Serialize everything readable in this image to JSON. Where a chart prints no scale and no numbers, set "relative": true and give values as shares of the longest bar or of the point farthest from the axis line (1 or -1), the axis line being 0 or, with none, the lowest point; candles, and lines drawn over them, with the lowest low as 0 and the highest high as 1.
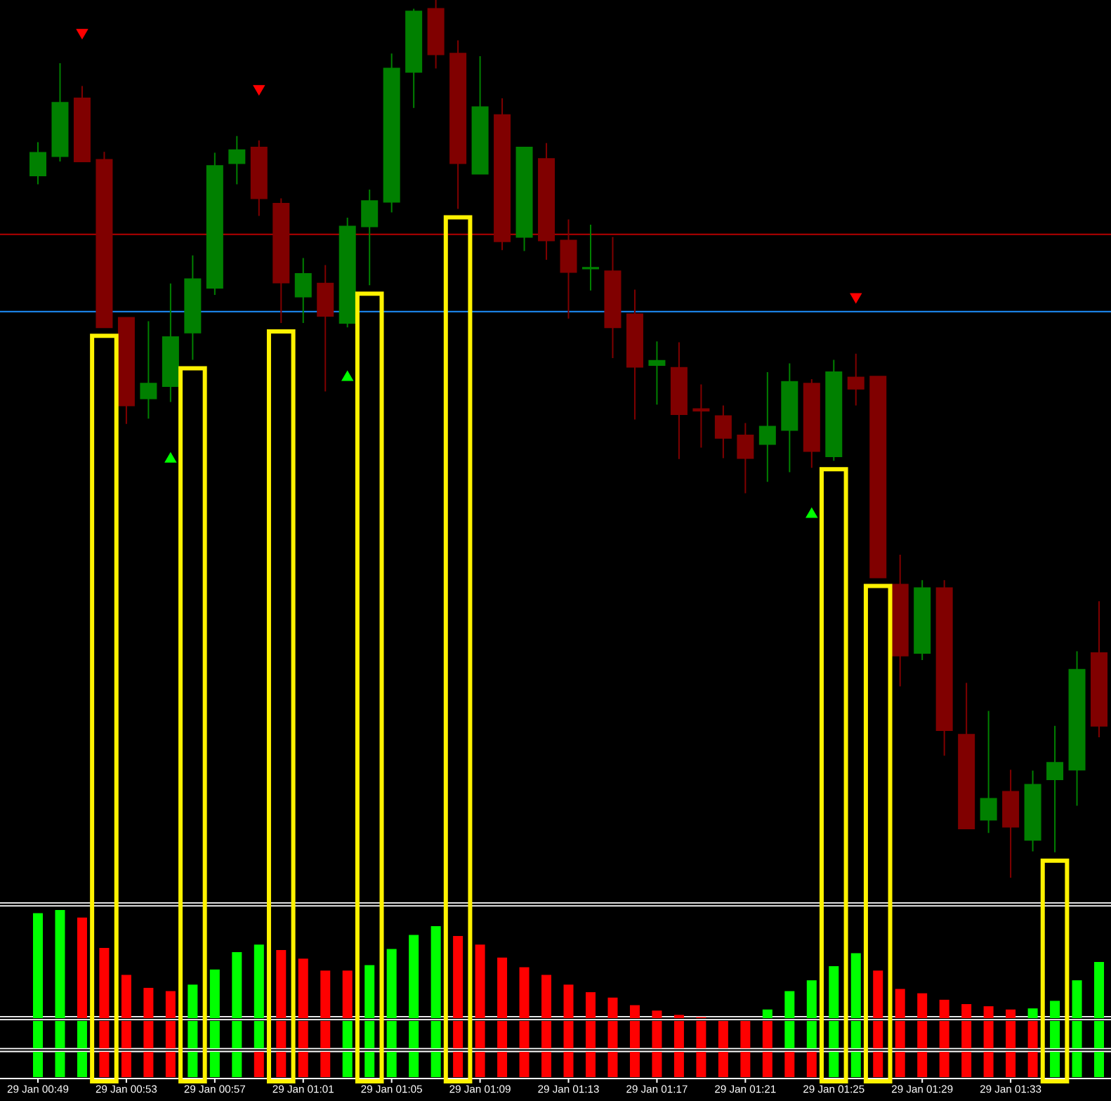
{
  "chart_data": [
    {
      "type": "candlestick",
      "relative": true,
      "categories": [
        null,
        null,
        null,
        null,
        null,
        null,
        null,
        null,
        null,
        null,
        null,
        null,
        null,
        null,
        null,
        null,
        null,
        null,
        null,
        null,
        null,
        null,
        null,
        null,
        null,
        null,
        null,
        null,
        null,
        null,
        null,
        null,
        null,
        null,
        null,
        null,
        null,
        null,
        null,
        null,
        null,
        null,
        null,
        null,
        null,
        null,
        null,
        null,
        null
      ],
      "ohlc": [
        [
          0.8,
          0.838,
          0.79,
          0.826
        ],
        [
          0.822,
          0.928,
          0.816,
          0.883
        ],
        [
          0.888,
          0.902,
          0.816,
          0.816
        ],
        [
          0.818,
          0.827,
          0.627,
          0.627
        ],
        [
          0.638,
          0.638,
          0.517,
          0.538
        ],
        [
          0.546,
          0.634,
          0.523,
          0.563
        ],
        [
          0.56,
          0.677,
          0.542,
          0.616
        ],
        [
          0.621,
          0.709,
          0.59,
          0.682
        ],
        [
          0.672,
          0.826,
          0.664,
          0.811
        ],
        [
          0.814,
          0.845,
          0.79,
          0.829
        ],
        [
          0.832,
          0.84,
          0.754,
          0.774
        ],
        [
          0.768,
          0.774,
          0.632,
          0.678
        ],
        [
          0.662,
          0.706,
          0.632,
          0.688
        ],
        [
          0.677,
          0.698,
          0.554,
          0.64
        ],
        [
          0.632,
          0.752,
          0.627,
          0.742
        ],
        [
          0.742,
          0.784,
          0.675,
          0.771
        ],
        [
          0.77,
          0.939,
          0.758,
          0.922
        ],
        [
          0.918,
          0.99,
          0.877,
          0.987
        ],
        [
          0.99,
          1,
          0.922,
          0.938
        ],
        [
          0.939,
          0.954,
          0.762,
          0.814
        ],
        [
          0.802,
          0.936,
          0.802,
          0.878
        ],
        [
          0.869,
          0.888,
          0.715,
          0.725
        ],
        [
          0.73,
          0.832,
          0.714,
          0.832
        ],
        [
          0.819,
          0.837,
          0.704,
          0.726
        ],
        [
          0.726,
          0.75,
          0.637,
          0.69
        ],
        [
          0.694,
          0.744,
          0.669,
          0.695
        ],
        [
          0.691,
          0.73,
          0.592,
          0.627
        ],
        [
          0.642,
          0.67,
          0.522,
          0.582
        ],
        [
          0.584,
          0.611,
          0.539,
          0.589
        ],
        [
          0.581,
          0.61,
          0.477,
          0.528
        ],
        [
          0.534,
          0.562,
          0.49,
          0.532
        ],
        [
          0.526,
          0.538,
          0.478,
          0.501
        ],
        [
          0.504,
          0.518,
          0.438,
          0.478
        ],
        [
          0.494,
          0.576,
          0.451,
          0.514
        ],
        [
          0.51,
          0.586,
          0.462,
          0.565
        ],
        [
          0.563,
          0.568,
          0.467,
          0.486
        ],
        [
          0.48,
          0.59,
          0.475,
          0.576
        ],
        [
          0.57,
          0.597,
          0.538,
          0.557
        ],
        [
          0.571,
          0.571,
          0.342,
          0.342
        ],
        [
          0.334,
          0.368,
          0.218,
          0.253
        ],
        [
          0.256,
          0.339,
          0.248,
          0.33
        ],
        [
          0.33,
          0.339,
          0.139,
          0.168
        ],
        [
          0.163,
          0.222,
          0.056,
          0.056
        ],
        [
          0.066,
          0.19,
          0.051,
          0.09
        ],
        [
          0.098,
          0.123,
          0,
          0.058
        ],
        [
          0.043,
          0.122,
          0.03,
          0.106
        ],
        [
          0.112,
          0.173,
          0.029,
          0.131
        ],
        [
          0.123,
          0.258,
          0.082,
          0.237
        ],
        [
          0.256,
          0.315,
          0.16,
          0.173
        ]
      ],
      "colors": [
        "#008000",
        "#008000",
        "#800000",
        "#800000",
        "#800000",
        "#008000",
        "#008000",
        "#008000",
        "#008000",
        "#008000",
        "#800000",
        "#800000",
        "#008000",
        "#800000",
        "#008000",
        "#008000",
        "#008000",
        "#008000",
        "#800000",
        "#800000",
        "#008000",
        "#800000",
        "#008000",
        "#800000",
        "#800000",
        "#008000",
        "#800000",
        "#800000",
        "#008000",
        "#800000",
        "#800000",
        "#800000",
        "#800000",
        "#008000",
        "#008000",
        "#800000",
        "#008000",
        "#800000",
        "#800000",
        "#800000",
        "#008000",
        "#800000",
        "#800000",
        "#008000",
        "#800000",
        "#008000",
        "#008000",
        "#008000",
        "#800000"
      ],
      "series": [
        {
          "type": "scatter",
          "marker": "triangle",
          "color": "#ff0000",
          "values": [
            null,
            null,
            0.963,
            null,
            null,
            null,
            null,
            null,
            null,
            null,
            0.899,
            null,
            null,
            null,
            null,
            null,
            null,
            null,
            null,
            null,
            null,
            null,
            null,
            null,
            null,
            null,
            null,
            null,
            null,
            null,
            null,
            null,
            null,
            null,
            null,
            null,
            null,
            0.662,
            null,
            null,
            null,
            null,
            null,
            null,
            null,
            null,
            null,
            null,
            null
          ]
        },
        {
          "type": "scatter",
          "marker": "triangle",
          "color": "#00ff00",
          "values": [
            null,
            null,
            null,
            null,
            null,
            null,
            0.477,
            null,
            null,
            null,
            null,
            null,
            null,
            null,
            0.57,
            null,
            null,
            null,
            null,
            null,
            null,
            null,
            null,
            null,
            null,
            null,
            null,
            null,
            null,
            null,
            null,
            null,
            null,
            null,
            null,
            0.414,
            null,
            null,
            null,
            null,
            null,
            null,
            null,
            null,
            null,
            null,
            null,
            null,
            null
          ]
        }
      ],
      "ref_lines": [
        {
          "axis": "y",
          "value": 0.733,
          "color": "#b40000"
        },
        {
          "axis": "y",
          "value": 0.645,
          "color": "#1e90ff"
        }
      ]
    },
    {
      "type": "bar",
      "relative": true,
      "categories": [
        null,
        null,
        null,
        null,
        null,
        null,
        null,
        null,
        null,
        null,
        null,
        null,
        null,
        null,
        null,
        null,
        null,
        null,
        null,
        null,
        null,
        null,
        null,
        null,
        null,
        null,
        null,
        null,
        null,
        null,
        null,
        null,
        null,
        null,
        null,
        null,
        null,
        null,
        null,
        null,
        null,
        null,
        null,
        null,
        null,
        null,
        null,
        null,
        null
      ],
      "values": [
        0.97,
        1,
        0.93,
        0.65,
        0.4,
        0.28,
        0.25,
        0.31,
        0.45,
        0.61,
        0.68,
        0.63,
        0.55,
        0.44,
        0.44,
        0.49,
        0.64,
        0.77,
        0.85,
        0.76,
        0.68,
        0.56,
        0.47,
        0.4,
        0.31,
        0.24,
        0.19,
        0.12,
        0.07,
        0.03,
        0.01,
        0,
        0,
        0.08,
        0.25,
        0.35,
        0.48,
        0.6,
        0.44,
        0.27,
        0.23,
        0.17,
        0.13,
        0.11,
        0.08,
        0.09,
        0.16,
        0.35,
        0.52
      ],
      "colors": [
        "#00ff00",
        "#00ff00",
        "#ff0000",
        "#ff0000",
        "#ff0000",
        "#ff0000",
        "#ff0000",
        "#00ff00",
        "#00ff00",
        "#00ff00",
        "#00ff00",
        "#ff0000",
        "#ff0000",
        "#ff0000",
        "#ff0000",
        "#00ff00",
        "#00ff00",
        "#00ff00",
        "#00ff00",
        "#ff0000",
        "#ff0000",
        "#ff0000",
        "#ff0000",
        "#ff0000",
        "#ff0000",
        "#ff0000",
        "#ff0000",
        "#ff0000",
        "#ff0000",
        "#ff0000",
        "#ff0000",
        "#ff0000",
        "#ff0000",
        "#00ff00",
        "#00ff00",
        "#00ff00",
        "#00ff00",
        "#00ff00",
        "#ff0000",
        "#ff0000",
        "#ff0000",
        "#ff0000",
        "#ff0000",
        "#ff0000",
        "#ff0000",
        "#00ff00",
        "#00ff00",
        "#00ff00",
        "#00ff00"
      ]
    },
    {
      "type": "bar",
      "relative": true,
      "categories": [
        null,
        null,
        null,
        null,
        null,
        null,
        null,
        null,
        null,
        null,
        null,
        null,
        null,
        null,
        null,
        null,
        null,
        null,
        null,
        null,
        null,
        null,
        null,
        null,
        null,
        null,
        null,
        null,
        null,
        null,
        null,
        null,
        null,
        null,
        null,
        null,
        null,
        null,
        null,
        null,
        null,
        null,
        null,
        null,
        null,
        null,
        null,
        null,
        null
      ],
      "values": [
        1,
        1,
        1,
        1,
        1,
        1,
        1,
        1,
        1,
        1,
        1,
        1,
        1,
        1,
        1,
        1,
        1,
        1,
        1,
        1,
        1,
        1,
        1,
        1,
        1,
        1,
        1,
        1,
        1,
        1,
        1,
        1,
        1,
        1,
        1,
        1,
        1,
        1,
        1,
        1,
        1,
        1,
        1,
        1,
        1,
        1,
        1,
        1,
        1
      ],
      "colors": [
        "#00ff00",
        "#00ff00",
        "#00ff00",
        "#ff0000",
        "#ff0000",
        "#ff0000",
        "#ff0000",
        "#00ff00",
        "#00ff00",
        "#00ff00",
        "#00ff00",
        "#ff0000",
        "#ff0000",
        "#ff0000",
        "#00ff00",
        "#00ff00",
        "#00ff00",
        "#00ff00",
        "#00ff00",
        "#ff0000",
        "#ff0000",
        "#ff0000",
        "#ff0000",
        "#ff0000",
        "#ff0000",
        "#ff0000",
        "#ff0000",
        "#ff0000",
        "#ff0000",
        "#ff0000",
        "#ff0000",
        "#ff0000",
        "#ff0000",
        "#ff0000",
        "#00ff00",
        "#00ff00",
        "#00ff00",
        "#00ff00",
        "#ff0000",
        "#ff0000",
        "#ff0000",
        "#ff0000",
        "#ff0000",
        "#ff0000",
        "#ff0000",
        "#ff0000",
        "#00ff00",
        "#00ff00",
        "#00ff00"
      ]
    },
    {
      "type": "bar",
      "relative": true,
      "categories": [
        "29 Jan 00:49",
        null,
        null,
        null,
        "29 Jan 00:53",
        null,
        null,
        null,
        "29 Jan 00:57",
        null,
        null,
        null,
        "29 Jan 01:01",
        null,
        null,
        null,
        "29 Jan 01:05",
        null,
        null,
        null,
        "29 Jan 01:09",
        null,
        null,
        null,
        "29 Jan 01:13",
        null,
        null,
        null,
        "29 Jan 01:17",
        null,
        null,
        null,
        "29 Jan 01:21",
        null,
        null,
        null,
        "29 Jan 01:25",
        null,
        null,
        null,
        "29 Jan 01:29",
        null,
        null,
        null,
        "29 Jan 01:33",
        null,
        null,
        null,
        null
      ],
      "values": [
        1,
        1,
        1,
        1,
        1,
        1,
        1,
        1,
        1,
        1,
        1,
        1,
        1,
        1,
        1,
        1,
        1,
        1,
        1,
        1,
        1,
        1,
        1,
        1,
        1,
        1,
        1,
        1,
        1,
        1,
        1,
        1,
        1,
        1,
        1,
        1,
        1,
        1,
        1,
        1,
        1,
        1,
        1,
        1,
        1,
        1,
        1,
        1,
        1
      ],
      "colors": [
        "#00ff00",
        "#00ff00",
        "#00ff00",
        "#ff0000",
        "#ff0000",
        "#ff0000",
        "#ff0000",
        "#00ff00",
        "#00ff00",
        "#00ff00",
        "#ff0000",
        "#ff0000",
        "#ff0000",
        "#ff0000",
        "#00ff00",
        "#00ff00",
        "#00ff00",
        "#00ff00",
        "#00ff00",
        "#ff0000",
        "#ff0000",
        "#ff0000",
        "#ff0000",
        "#ff0000",
        "#ff0000",
        "#ff0000",
        "#ff0000",
        "#ff0000",
        "#ff0000",
        "#ff0000",
        "#ff0000",
        "#ff0000",
        "#ff0000",
        "#ff0000",
        "#ff0000",
        "#ff0000",
        "#00ff00",
        "#00ff00",
        "#ff0000",
        "#ff0000",
        "#ff0000",
        "#ff0000",
        "#ff0000",
        "#ff0000",
        "#ff0000",
        "#ff0000",
        "#00ff00",
        "#00ff00",
        "#00ff00"
      ]
    }
  ]
}
